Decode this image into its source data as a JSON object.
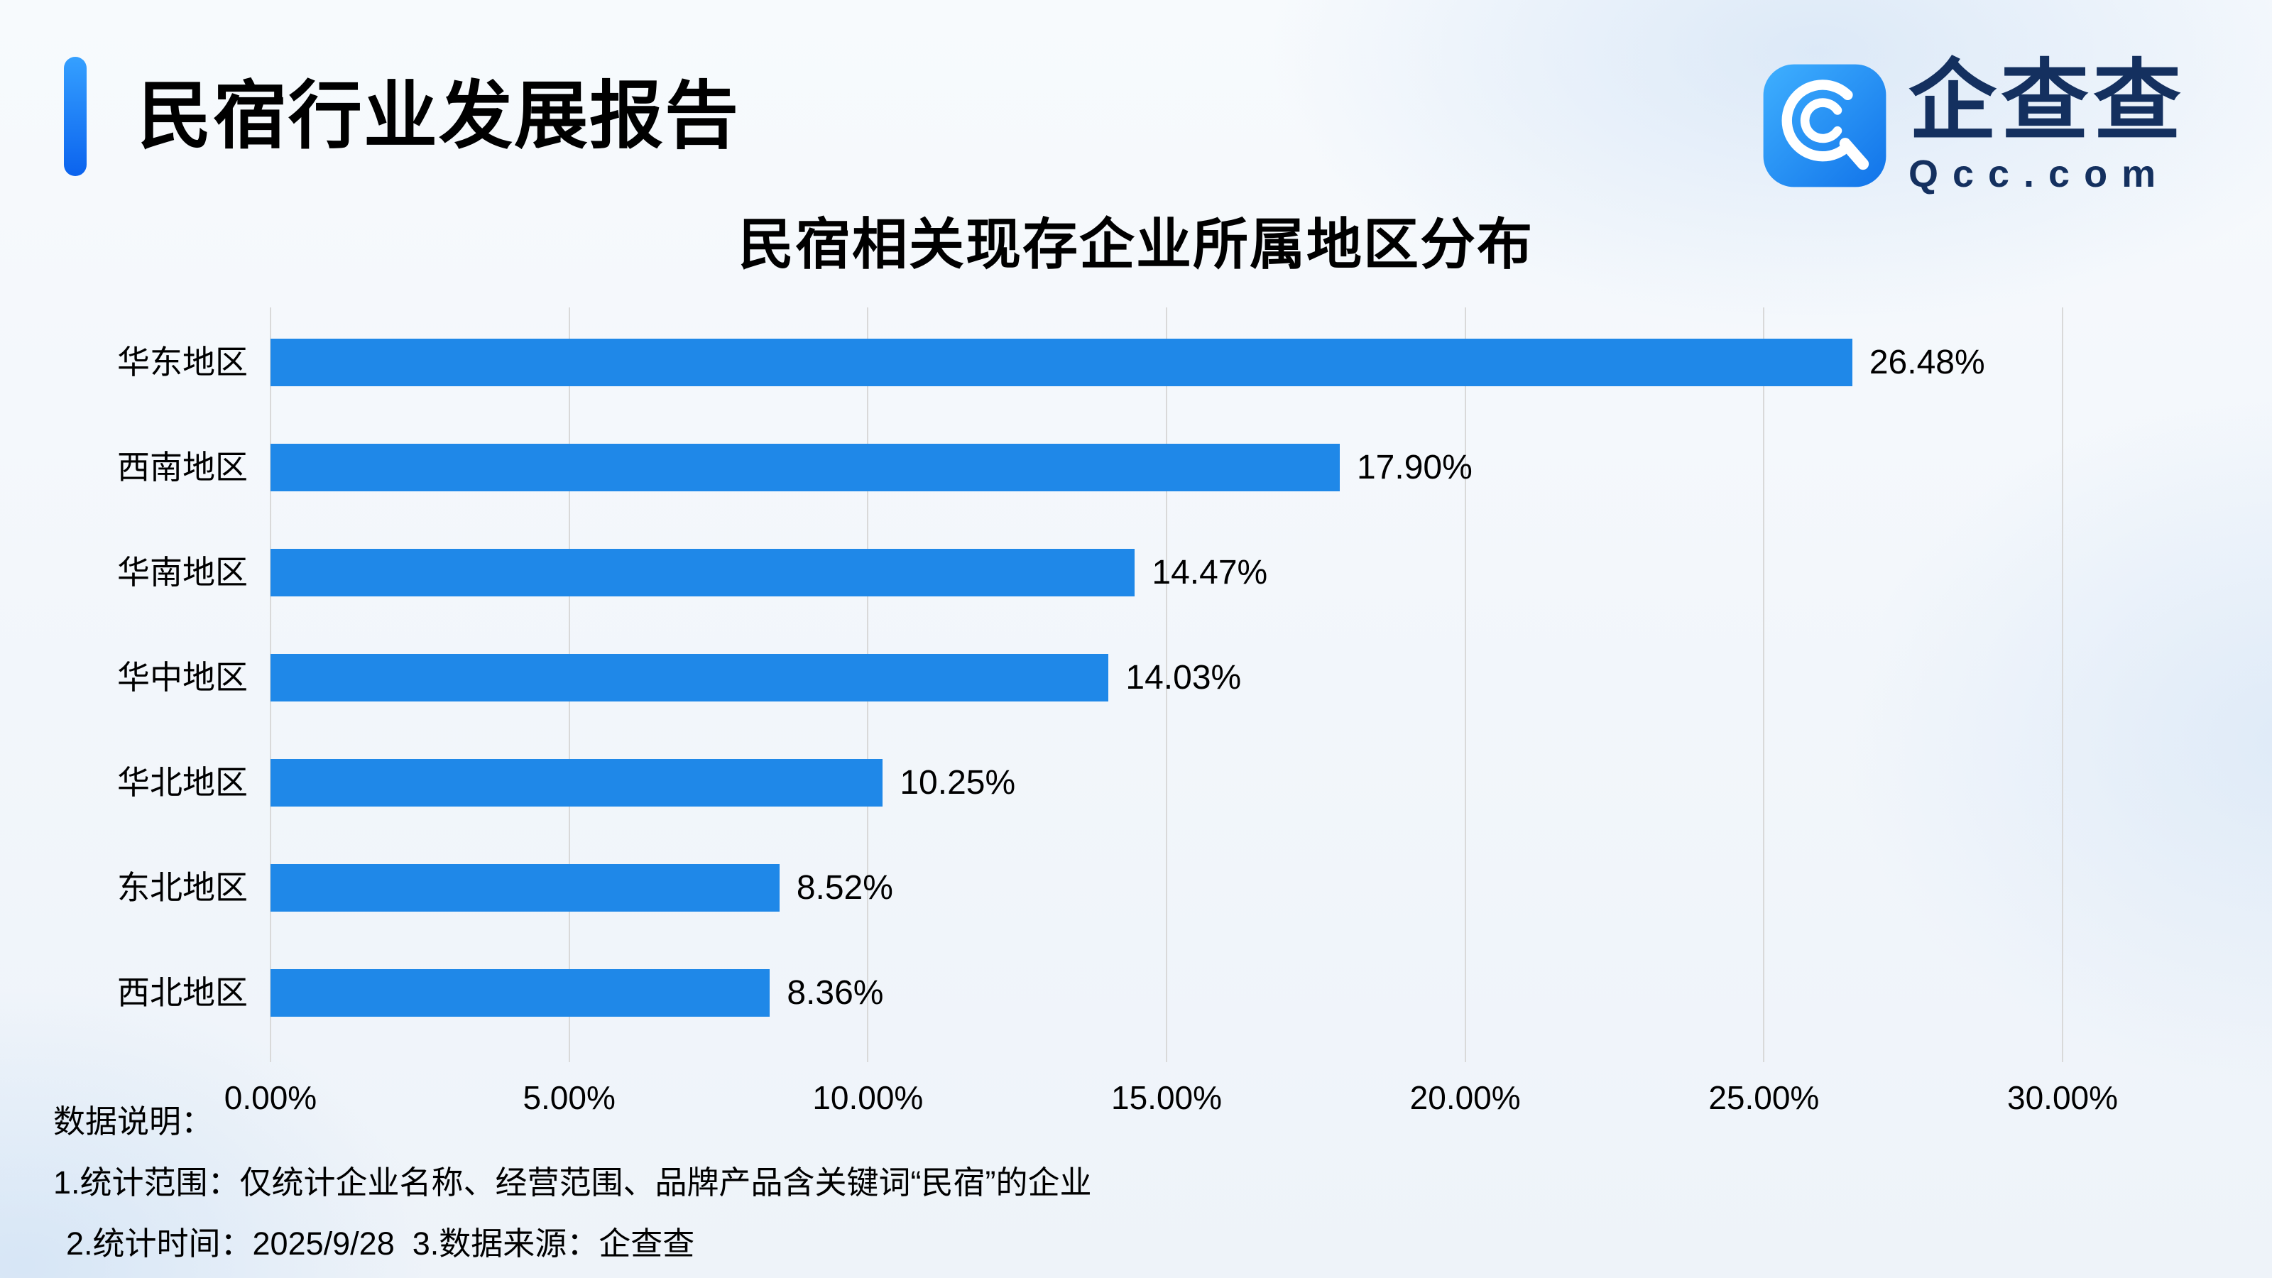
{
  "header": {
    "title": "民宿行业发展报告",
    "logo": {
      "brand": "企查查",
      "domain": "Qcc.com"
    }
  },
  "chart_data": {
    "type": "bar",
    "orientation": "horizontal",
    "title": "民宿相关现存企业所属地区分布",
    "categories": [
      "华东地区",
      "西南地区",
      "华南地区",
      "华中地区",
      "华北地区",
      "东北地区",
      "西北地区"
    ],
    "values": [
      26.48,
      17.9,
      14.47,
      14.03,
      10.25,
      8.52,
      8.36
    ],
    "value_labels": [
      "26.48%",
      "17.90%",
      "14.47%",
      "14.03%",
      "10.25%",
      "8.52%",
      "8.36%"
    ],
    "xlabel": "",
    "ylabel": "",
    "xlim": [
      0,
      30
    ],
    "x_ticks": [
      "0.00%",
      "5.00%",
      "10.00%",
      "15.00%",
      "20.00%",
      "25.00%",
      "30.00%"
    ],
    "x_tick_values": [
      0,
      5,
      10,
      15,
      20,
      25,
      30
    ],
    "bar_color": "#1f88e8",
    "grid": true,
    "legend": false
  },
  "footer": {
    "title": "数据说明：",
    "line1": "1.统计范围：仅统计企业名称、经营范围、品牌产品含关键词“民宿”的企业",
    "line2": "2.统计时间：2025/9/28  3.数据来源：企查查"
  }
}
